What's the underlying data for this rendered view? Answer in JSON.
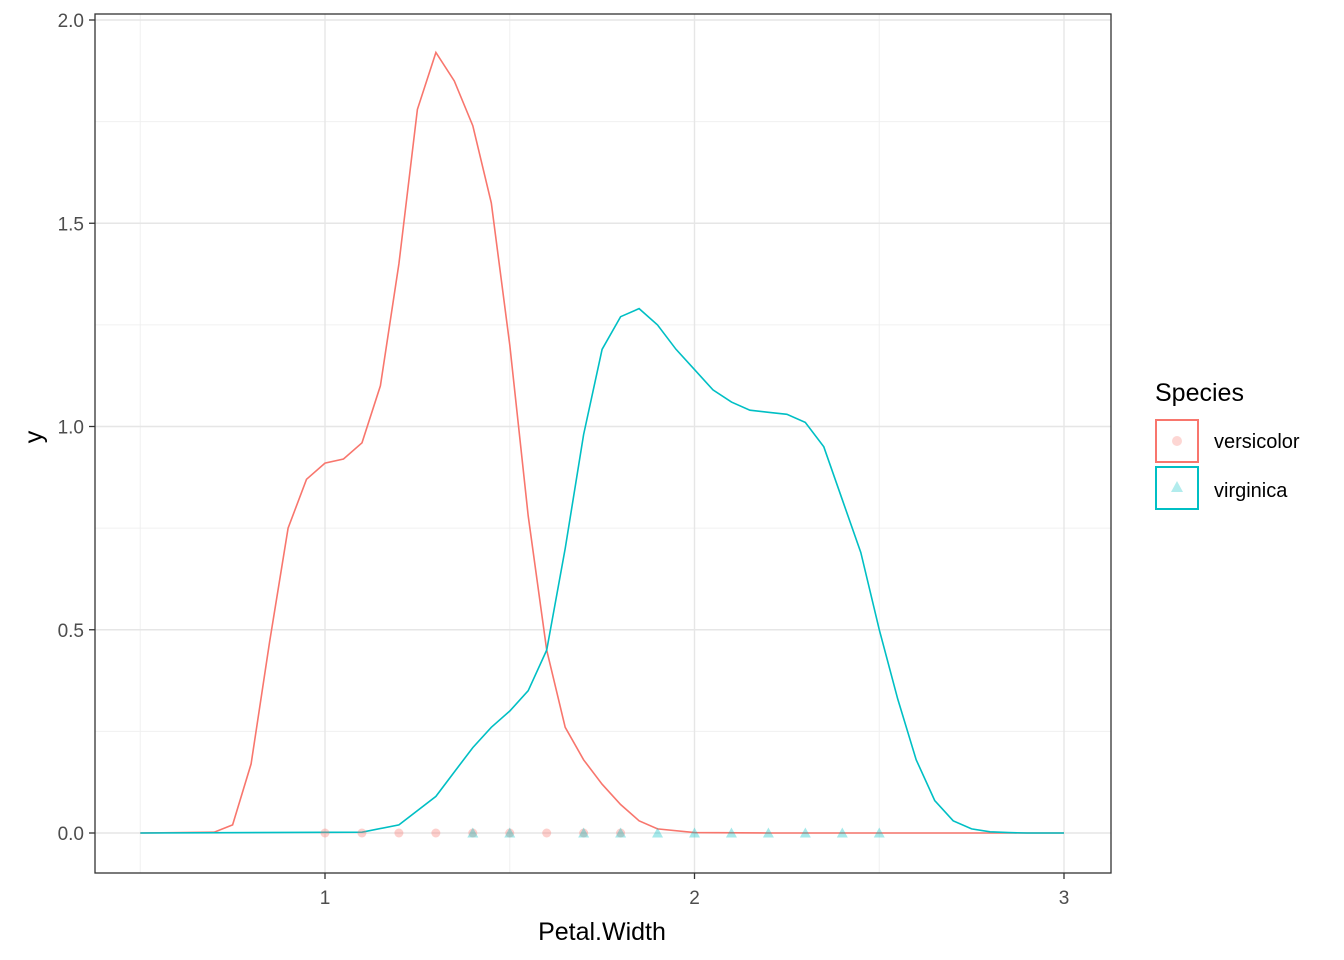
{
  "chart_data": {
    "type": "line",
    "title": "",
    "xlabel": "Petal.Width",
    "ylabel": "y",
    "xlim": [
      0.5,
      3.0
    ],
    "ylim": [
      0,
      2.0
    ],
    "x_ticks": [
      "1",
      "2",
      "3"
    ],
    "y_ticks": [
      "0.0",
      "0.5",
      "1.0",
      "1.5",
      "2.0"
    ],
    "grid": true,
    "legend": {
      "title": "Species",
      "position": "right"
    },
    "series": [
      {
        "name": "versicolor",
        "color": "#F8766D",
        "marker": "circle",
        "density": {
          "x": [
            0.5,
            0.7,
            0.75,
            0.8,
            0.85,
            0.9,
            0.95,
            1.0,
            1.05,
            1.1,
            1.15,
            1.2,
            1.25,
            1.3,
            1.35,
            1.4,
            1.45,
            1.5,
            1.55,
            1.6,
            1.65,
            1.7,
            1.75,
            1.8,
            1.85,
            1.9,
            2.0,
            2.2,
            2.5,
            3.0
          ],
          "y": [
            0,
            0.002,
            0.02,
            0.17,
            0.47,
            0.75,
            0.87,
            0.91,
            0.92,
            0.96,
            1.1,
            1.4,
            1.78,
            1.92,
            1.85,
            1.74,
            1.55,
            1.2,
            0.78,
            0.45,
            0.26,
            0.18,
            0.12,
            0.07,
            0.03,
            0.01,
            0.001,
            0,
            0,
            0
          ]
        },
        "points_x": [
          1.0,
          1.1,
          1.2,
          1.3,
          1.4,
          1.5,
          1.6,
          1.7,
          1.8
        ]
      },
      {
        "name": "virginica",
        "color": "#00BFC4",
        "marker": "triangle",
        "density": {
          "x": [
            0.5,
            1.1,
            1.2,
            1.3,
            1.35,
            1.4,
            1.45,
            1.5,
            1.55,
            1.6,
            1.65,
            1.7,
            1.75,
            1.8,
            1.85,
            1.9,
            1.95,
            2.0,
            2.05,
            2.1,
            2.15,
            2.2,
            2.25,
            2.3,
            2.35,
            2.4,
            2.45,
            2.5,
            2.55,
            2.6,
            2.65,
            2.7,
            2.75,
            2.8,
            2.85,
            2.9,
            3.0
          ],
          "y": [
            0,
            0.002,
            0.02,
            0.09,
            0.15,
            0.21,
            0.26,
            0.3,
            0.35,
            0.45,
            0.7,
            0.98,
            1.19,
            1.27,
            1.29,
            1.25,
            1.19,
            1.14,
            1.09,
            1.06,
            1.04,
            1.035,
            1.03,
            1.01,
            0.95,
            0.82,
            0.69,
            0.5,
            0.33,
            0.18,
            0.08,
            0.03,
            0.01,
            0.003,
            0.001,
            0,
            0
          ]
        },
        "points_x": [
          1.4,
          1.5,
          1.7,
          1.8,
          1.9,
          2.0,
          2.1,
          2.2,
          2.3,
          2.4,
          2.5
        ]
      }
    ]
  }
}
